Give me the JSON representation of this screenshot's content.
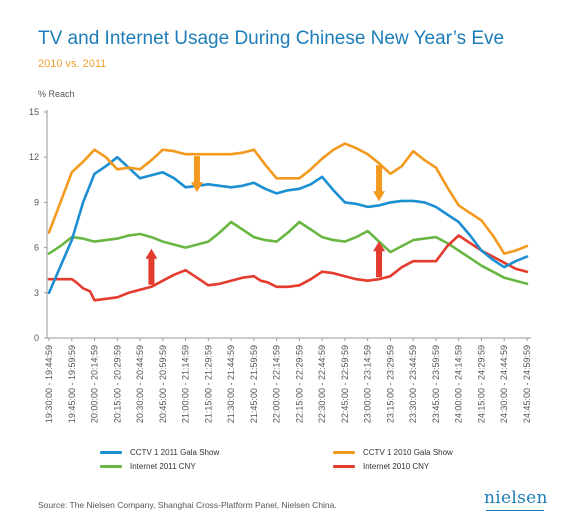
{
  "header": {
    "title": "TV and Internet Usage During Chinese New Year’s Eve",
    "subtitle": "2010 vs. 2011"
  },
  "footer": {
    "source": "Source: The Nielsen Company, Shanghai Cross-Platform Panel, Nielsen China.",
    "logo": "nielsen"
  },
  "chart_data": {
    "type": "line",
    "title": "TV and Internet Usage During Chinese New Year’s Eve",
    "subtitle": "2010 vs. 2011",
    "ylabel": "% Reach",
    "ylim": [
      0,
      15
    ],
    "yticks": [
      0,
      3,
      6,
      9,
      12,
      15
    ],
    "grid": false,
    "legend_position": "bottom",
    "categories": [
      "19:30:00 - 19:44:59",
      "19:45:00 - 19:59:59",
      "20:00:00 - 20:14:59",
      "20:15:00 - 20:29:59",
      "20:30:00 - 20:44:59",
      "20:45:00 - 20:59:59",
      "21:00:00 - 21:14:59",
      "21:15:00 - 21:29:59",
      "21:30:00 - 21:44:59",
      "21:45:00 - 21:59:59",
      "22:00:00 - 22:14:59",
      "22:15:00 - 22:29:59",
      "22:30:00 - 22:44:59",
      "22:45:00 - 22:59:59",
      "23:00:00 - 23:14:59",
      "23:15:00 - 23:29:59",
      "23:30:00 - 23:44:59",
      "23:45:00 - 23:59:59",
      "24:00:00 - 24:14:59",
      "24:15:00 - 24:29:59",
      "24:30:00 - 24:44:59",
      "24:45:00 - 24:59:59"
    ],
    "series": [
      {
        "name": "CCTV 1 2011 Gala Show",
        "color": "#1b8fd2",
        "x": [
          0,
          1,
          1.5,
          2,
          2.5,
          3,
          3.5,
          4,
          4.5,
          5,
          5.5,
          6,
          6.5,
          7,
          7.5,
          8,
          8.5,
          9,
          9.5,
          10,
          10.5,
          11,
          11.5,
          12,
          12.5,
          13,
          13.5,
          14,
          14.5,
          15,
          15.5,
          16,
          16.5,
          17,
          17.5,
          18,
          18.5,
          19,
          19.5,
          20,
          20.5,
          21
        ],
        "y": [
          3.0,
          6.5,
          9.0,
          10.9,
          11.4,
          12.0,
          11.3,
          10.6,
          10.8,
          11.0,
          10.6,
          10.0,
          10.1,
          10.2,
          10.1,
          10.0,
          10.1,
          10.3,
          9.9,
          9.6,
          9.8,
          9.9,
          10.2,
          10.7,
          9.8,
          9.0,
          8.9,
          8.7,
          8.8,
          9.0,
          9.1,
          9.1,
          9.0,
          8.7,
          8.2,
          7.7,
          6.8,
          5.8,
          5.2,
          4.7,
          5.1,
          5.4
        ]
      },
      {
        "name": "CCTV 1 2010 Gala Show",
        "color": "#f39a1e",
        "x": [
          0,
          0.5,
          1,
          1.5,
          2,
          2.5,
          3,
          3.5,
          4,
          4.5,
          5,
          5.5,
          6,
          6.5,
          7,
          7.5,
          8,
          8.5,
          9,
          9.5,
          10,
          10.5,
          11,
          11.5,
          12,
          12.5,
          13,
          13.5,
          14,
          14.5,
          15,
          15.5,
          16,
          16.5,
          17,
          17.5,
          18,
          18.5,
          19,
          19.5,
          20,
          20.5,
          21
        ],
        "y": [
          7.0,
          9.0,
          11.0,
          11.7,
          12.5,
          12.0,
          11.2,
          11.3,
          11.2,
          11.8,
          12.5,
          12.4,
          12.2,
          12.2,
          12.2,
          12.2,
          12.2,
          12.3,
          12.5,
          11.5,
          10.6,
          10.6,
          10.6,
          11.2,
          11.9,
          12.5,
          12.9,
          12.6,
          12.2,
          11.6,
          10.9,
          11.4,
          12.4,
          11.8,
          11.3,
          10.0,
          8.8,
          8.3,
          7.8,
          6.8,
          5.6,
          5.8,
          6.1
        ]
      },
      {
        "name": "Internet 2011 CNY",
        "color": "#6ab643",
        "x": [
          0,
          0.5,
          1,
          1.5,
          2,
          2.5,
          3,
          3.5,
          4,
          4.5,
          5,
          5.5,
          6,
          6.5,
          7,
          7.5,
          8,
          8.5,
          9,
          9.5,
          10,
          10.5,
          11,
          11.5,
          12,
          12.5,
          13,
          13.5,
          14,
          14.5,
          15,
          15.5,
          16,
          16.5,
          17,
          17.5,
          18,
          18.5,
          19,
          19.5,
          20,
          20.5,
          21
        ],
        "y": [
          5.6,
          6.1,
          6.7,
          6.6,
          6.4,
          6.5,
          6.6,
          6.8,
          6.9,
          6.7,
          6.4,
          6.2,
          6.0,
          6.2,
          6.4,
          7.0,
          7.7,
          7.2,
          6.7,
          6.5,
          6.4,
          7.0,
          7.7,
          7.2,
          6.7,
          6.5,
          6.4,
          6.7,
          7.1,
          6.4,
          5.7,
          6.1,
          6.5,
          6.6,
          6.7,
          6.3,
          5.8,
          5.3,
          4.8,
          4.4,
          4.0,
          3.8,
          3.6
        ]
      },
      {
        "name": "Internet 2010 CNY",
        "color": "#e33b2e",
        "x": [
          0,
          0.5,
          1,
          1.2,
          1.5,
          1.8,
          2,
          2.5,
          3,
          3.5,
          4,
          4.5,
          5,
          5.5,
          6,
          6.5,
          7,
          7.5,
          8,
          8.5,
          9,
          9.3,
          9.6,
          10,
          10.5,
          11,
          11.5,
          12,
          12.5,
          13,
          13.5,
          14,
          14.5,
          15,
          15.5,
          16,
          16.5,
          17,
          17.5,
          18,
          18.5,
          19,
          19.5,
          20,
          20.5,
          21
        ],
        "y": [
          3.9,
          3.9,
          3.9,
          3.7,
          3.3,
          3.1,
          2.5,
          2.6,
          2.7,
          3.0,
          3.2,
          3.4,
          3.8,
          4.2,
          4.5,
          4.0,
          3.5,
          3.6,
          3.8,
          4.0,
          4.1,
          3.8,
          3.7,
          3.4,
          3.4,
          3.5,
          3.9,
          4.4,
          4.3,
          4.1,
          3.9,
          3.8,
          3.9,
          4.1,
          4.7,
          5.1,
          5.1,
          5.1,
          6.1,
          6.8,
          6.3,
          5.8,
          5.4,
          5.0,
          4.6,
          4.4
        ]
      }
    ],
    "annotations": [
      {
        "type": "arrow-down",
        "series": "CCTV 1 2010 Gala Show",
        "x": 6.5,
        "color": "#f39a1e"
      },
      {
        "type": "arrow-down",
        "series": "CCTV 1 2010 Gala Show",
        "x": 14.5,
        "color": "#f39a1e"
      },
      {
        "type": "arrow-up",
        "series": "Internet 2010 CNY",
        "x": 4.5,
        "color": "#e33b2e"
      },
      {
        "type": "arrow-up",
        "series": "Internet 2010 CNY",
        "x": 14.5,
        "color": "#e33b2e"
      }
    ]
  }
}
